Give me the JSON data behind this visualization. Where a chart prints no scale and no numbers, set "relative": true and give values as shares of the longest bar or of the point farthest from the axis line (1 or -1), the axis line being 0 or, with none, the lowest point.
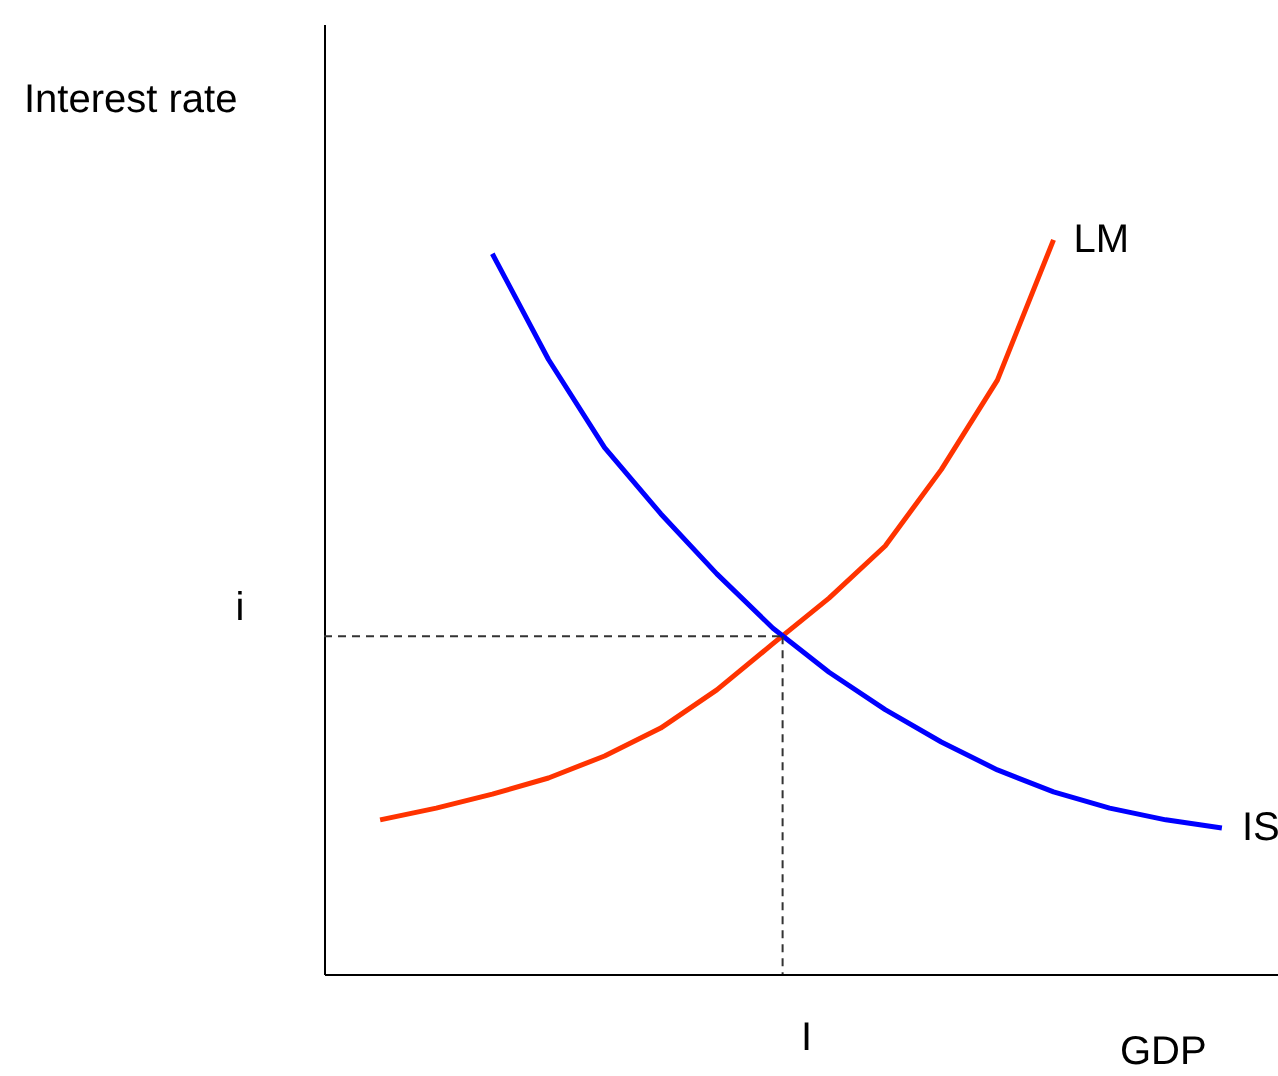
{
  "chart_data": {
    "type": "line",
    "relative": true,
    "ylabel": "Interest rate",
    "xlabel": "GDP",
    "grid": false,
    "marker": "none",
    "line_style": "solid",
    "categories": [
      null,
      null,
      null,
      null,
      null,
      null,
      null,
      null,
      null,
      null,
      null,
      null,
      null,
      null,
      null,
      null
    ],
    "series": [
      {
        "name": "LM",
        "color": "#ff3300",
        "values": [
          0.21,
          0.226,
          0.245,
          0.267,
          0.297,
          0.335,
          0.387,
          0.45,
          0.512,
          0.583,
          0.687,
          0.809,
          1,
          null,
          null,
          null
        ]
      },
      {
        "name": "IS",
        "color": "#0000ff",
        "values": [
          null,
          null,
          0.981,
          0.837,
          0.717,
          0.627,
          0.545,
          0.471,
          0.411,
          0.36,
          0.316,
          0.278,
          0.248,
          0.226,
          0.21,
          0.199
        ]
      }
    ],
    "ref_lines": [
      {
        "axis": "y",
        "value": 0.46,
        "label": "i",
        "line_style": "dashed",
        "color": "#333333"
      }
    ],
    "annotations": [
      "I"
    ]
  }
}
